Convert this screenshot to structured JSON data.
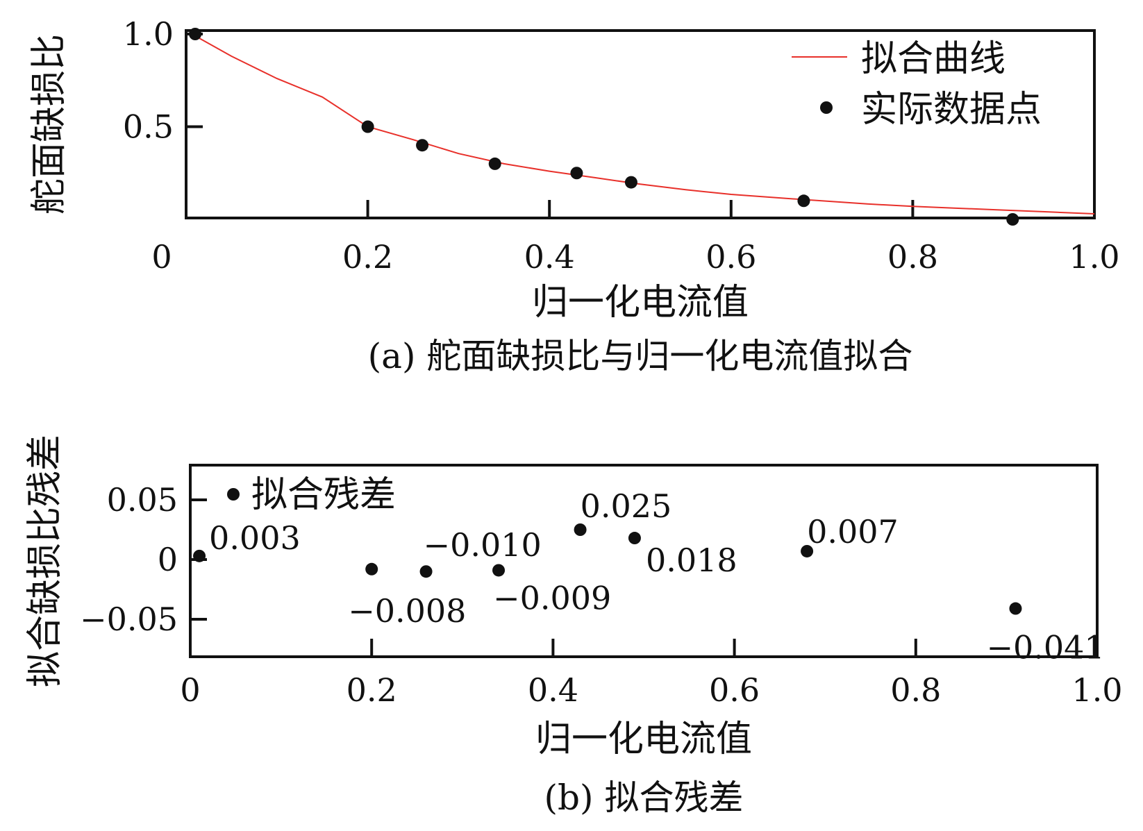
{
  "chart_data": [
    {
      "type": "scatter",
      "title": "",
      "caption": "(a) 舵面缺损比与归一化电流值拟合",
      "xlabel": "归一化电流值",
      "ylabel": "舵面缺损比",
      "xlim": [
        0,
        1.0
      ],
      "ylim": [
        0,
        1.0
      ],
      "x_ticks": [
        "0",
        "0.2",
        "0.4",
        "0.6",
        "0.8",
        "1.0"
      ],
      "y_ticks": [
        "0.5",
        "1.0"
      ],
      "grid": false,
      "legend_position": "top-right",
      "series": [
        {
          "name": "拟合曲线",
          "kind": "line",
          "color": "#e8302a",
          "x": [
            0.01,
            0.05,
            0.1,
            0.15,
            0.2,
            0.25,
            0.3,
            0.35,
            0.4,
            0.45,
            0.5,
            0.55,
            0.6,
            0.65,
            0.7,
            0.75,
            0.8,
            0.85,
            0.9,
            0.95,
            1.0
          ],
          "y": [
            0.99,
            0.88,
            0.76,
            0.66,
            0.5,
            0.43,
            0.355,
            0.3,
            0.26,
            0.225,
            0.19,
            0.16,
            0.135,
            0.117,
            0.1,
            0.083,
            0.07,
            0.06,
            0.05,
            0.04,
            0.03
          ]
        },
        {
          "name": "实际数据点",
          "kind": "scatter",
          "color": "#111111",
          "x": [
            0.01,
            0.2,
            0.26,
            0.34,
            0.43,
            0.49,
            0.68,
            0.91
          ],
          "y": [
            1.0,
            0.5,
            0.4,
            0.3,
            0.25,
            0.2,
            0.1,
            0.0
          ]
        }
      ]
    },
    {
      "type": "scatter",
      "title": "",
      "caption": "(b) 拟合残差",
      "xlabel": "归一化电流值",
      "ylabel": "拟合缺损比残差",
      "xlim": [
        0,
        1.0
      ],
      "ylim": [
        -0.08,
        0.08
      ],
      "x_ticks": [
        "0",
        "0.2",
        "0.4",
        "0.6",
        "0.8",
        "1.0"
      ],
      "y_ticks": [
        "0.05",
        "0",
        "−0.05"
      ],
      "grid": false,
      "legend_position": "top-left",
      "series": [
        {
          "name": "拟合残差",
          "kind": "scatter",
          "color": "#111111",
          "x": [
            0.01,
            0.2,
            0.26,
            0.34,
            0.43,
            0.49,
            0.68,
            0.91
          ],
          "y": [
            0.003,
            -0.008,
            -0.01,
            -0.009,
            0.025,
            0.018,
            0.007,
            -0.041
          ],
          "labels": [
            "0.003",
            "−0.008",
            "−0.010",
            "−0.009",
            "0.025",
            "0.018",
            "0.007",
            "−0.041"
          ]
        }
      ]
    }
  ]
}
